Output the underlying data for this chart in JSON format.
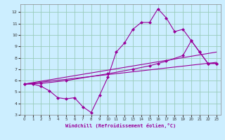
{
  "xlabel": "Windchill (Refroidissement éolien,°C)",
  "bg_color": "#cceeff",
  "grid_color": "#99ccbb",
  "line_color": "#990099",
  "xlim": [
    -0.5,
    23.5
  ],
  "ylim": [
    3.0,
    12.7
  ],
  "xticks": [
    0,
    1,
    2,
    3,
    4,
    5,
    6,
    7,
    8,
    9,
    10,
    11,
    12,
    13,
    14,
    15,
    16,
    17,
    18,
    19,
    20,
    21,
    22,
    23
  ],
  "yticks": [
    3,
    4,
    5,
    6,
    7,
    8,
    9,
    10,
    11,
    12
  ],
  "line1_x": [
    0,
    1,
    2,
    3,
    4,
    5,
    6,
    7,
    8,
    9,
    10,
    11,
    12,
    13,
    14,
    15,
    16,
    17,
    18,
    19,
    20,
    21,
    22,
    23
  ],
  "line1_y": [
    5.7,
    5.7,
    5.5,
    5.1,
    4.5,
    4.4,
    4.5,
    3.7,
    3.2,
    4.7,
    6.3,
    8.5,
    9.3,
    10.5,
    11.1,
    11.1,
    12.3,
    11.5,
    10.3,
    10.5,
    9.5,
    8.5,
    7.5,
    7.5
  ],
  "line2_x": [
    0,
    23
  ],
  "line2_y": [
    5.7,
    7.6
  ],
  "line3_x": [
    0,
    23
  ],
  "line3_y": [
    5.7,
    8.5
  ],
  "line4_x": [
    0,
    2,
    5,
    10,
    13,
    15,
    16,
    17,
    19,
    20,
    21,
    22,
    23
  ],
  "line4_y": [
    5.7,
    5.75,
    6.0,
    6.6,
    7.0,
    7.3,
    7.5,
    7.7,
    8.2,
    9.5,
    8.5,
    7.5,
    7.5
  ]
}
